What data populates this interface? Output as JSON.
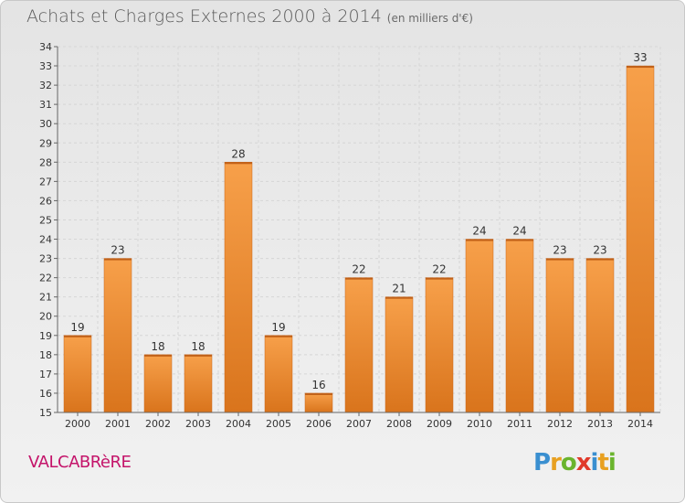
{
  "header": {
    "title": "Achats et Charges Externes 2000 à 2014",
    "subtitle": "(en milliers d'€)"
  },
  "footer": {
    "commune": "VALCABRèRE",
    "logo_letters": [
      "P",
      "r",
      "o",
      "x",
      "i",
      "t",
      "i"
    ],
    "logo_colors": [
      "#3a8fd0",
      "#e8a020",
      "#6ab42d",
      "#e03a2a",
      "#3a8fd0",
      "#e8a020",
      "#6ab42d"
    ]
  },
  "chart_data": {
    "type": "bar",
    "categories": [
      "2000",
      "2001",
      "2002",
      "2003",
      "2004",
      "2005",
      "2006",
      "2007",
      "2008",
      "2009",
      "2010",
      "2011",
      "2012",
      "2013",
      "2014"
    ],
    "values": [
      19,
      23,
      18,
      18,
      28,
      19,
      16,
      22,
      21,
      22,
      24,
      24,
      23,
      23,
      33
    ],
    "title": "Achats et Charges Externes 2000 à 2014",
    "ylim": [
      15,
      34
    ],
    "yticks": [
      "15",
      "16",
      "17",
      "18",
      "19",
      "20",
      "21",
      "22",
      "23",
      "24",
      "25",
      "26",
      "27",
      "28",
      "29",
      "30",
      "31",
      "32",
      "33",
      "34"
    ],
    "grid": true,
    "bar_color": "#f08a30"
  }
}
